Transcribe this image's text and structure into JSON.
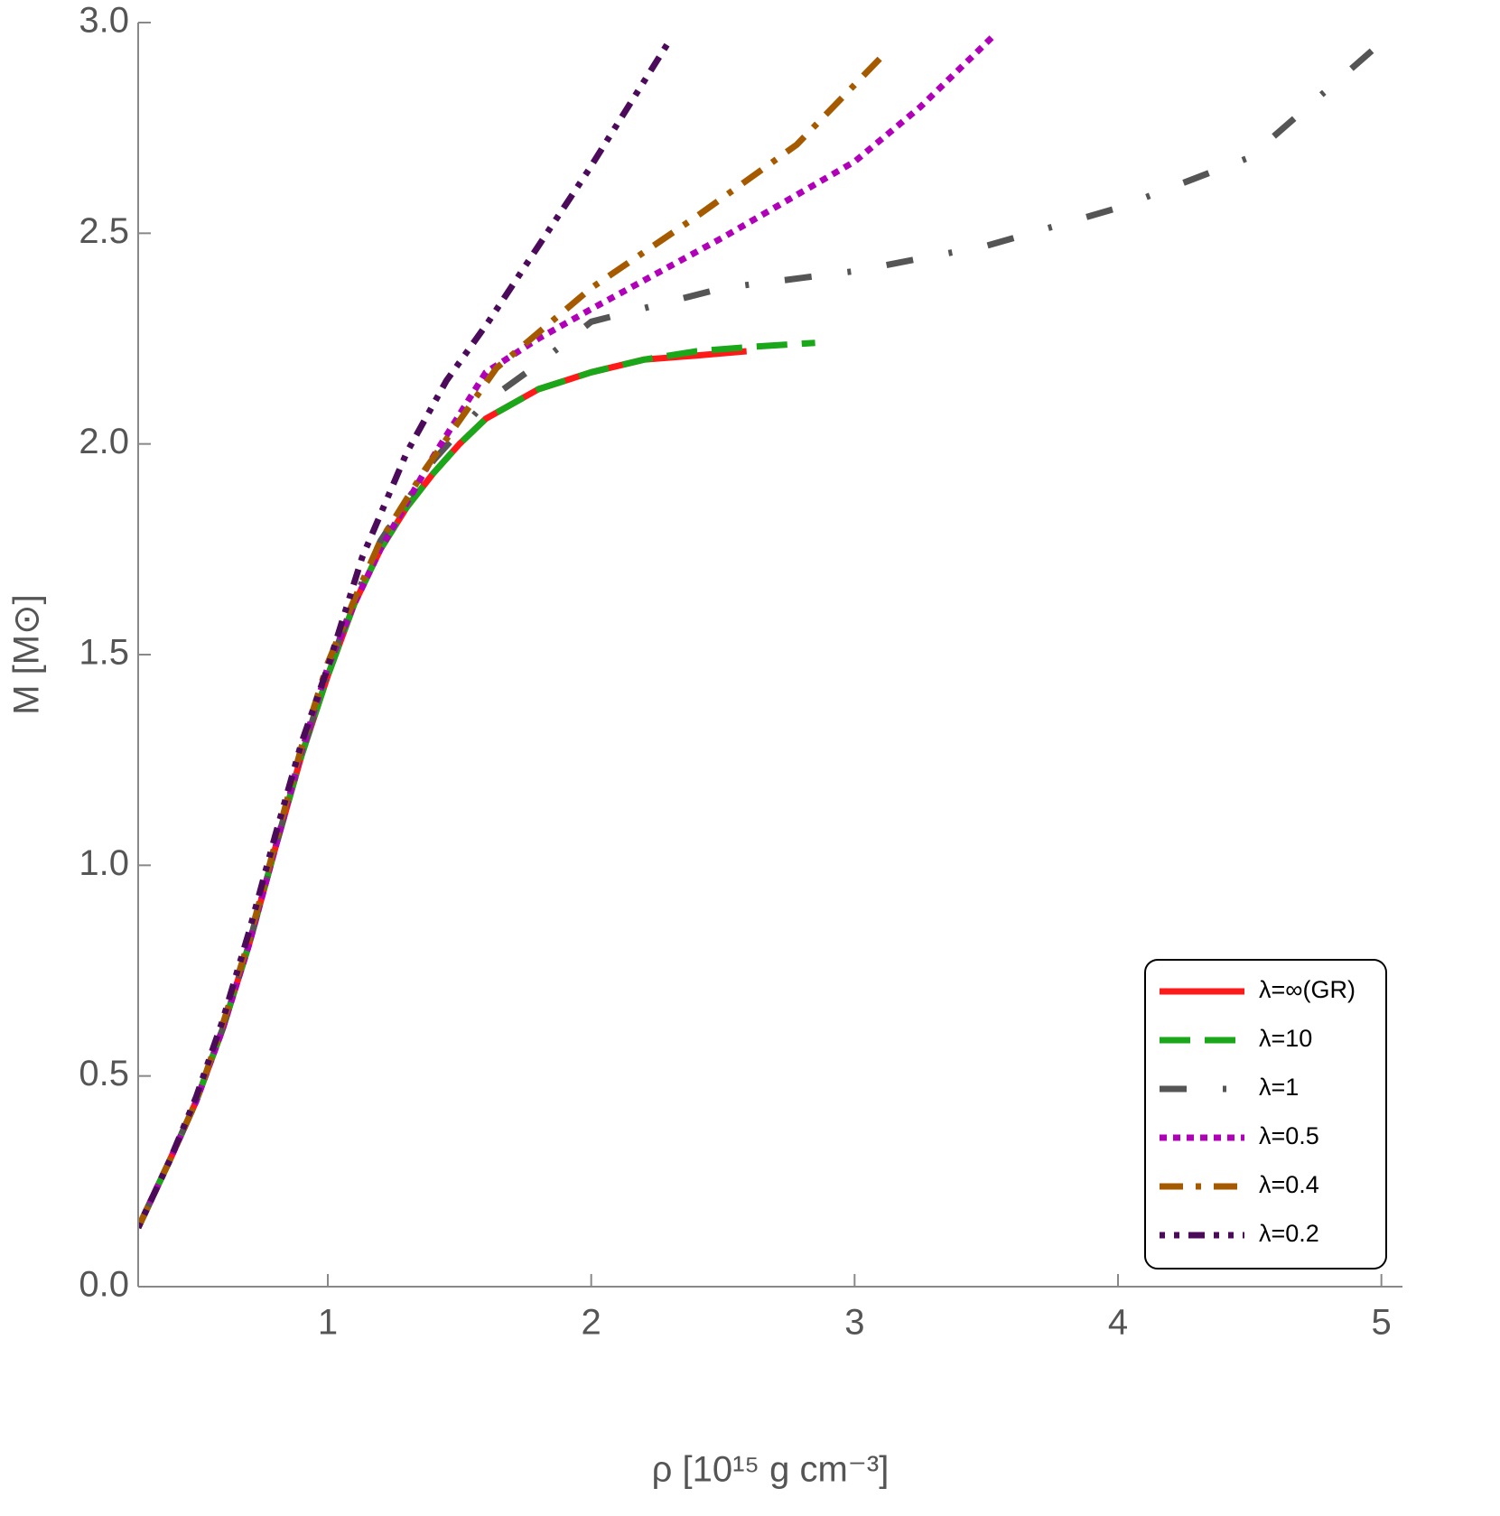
{
  "chart_data": {
    "type": "line",
    "xlabel": "ρ [10¹⁵ g cm⁻³]",
    "ylabel": "M [M⊙]",
    "xlim": [
      0.28,
      5.08
    ],
    "ylim": [
      0,
      3
    ],
    "xticks": [
      1,
      2,
      3,
      4,
      5
    ],
    "yticks": [
      {
        "value": 0,
        "label": "0.0"
      },
      0.5,
      {
        "value": 1,
        "label": "1.0"
      },
      1.5,
      {
        "value": 2,
        "label": "2.0"
      },
      2.5,
      {
        "value": 3,
        "label": "3.0"
      }
    ],
    "legend": "lower right",
    "series": [
      {
        "name": "λ=∞(GR)",
        "color": "#ff1a1a",
        "dash": "solid",
        "x": [
          0.28,
          0.4,
          0.5,
          0.6,
          0.7,
          0.8,
          0.9,
          1.0,
          1.1,
          1.2,
          1.3,
          1.4,
          1.5,
          1.6,
          1.8,
          2.0,
          2.2,
          2.4,
          2.59
        ],
        "values": [
          0.14,
          0.3,
          0.44,
          0.61,
          0.81,
          1.04,
          1.26,
          1.45,
          1.62,
          1.75,
          1.85,
          1.93,
          2.0,
          2.06,
          2.13,
          2.17,
          2.2,
          2.21,
          2.22
        ]
      },
      {
        "name": "λ=10",
        "color": "#1aa81a",
        "dash": "long-dash",
        "x": [
          0.28,
          0.4,
          0.5,
          0.6,
          0.7,
          0.8,
          0.9,
          1.0,
          1.1,
          1.2,
          1.3,
          1.4,
          1.5,
          1.6,
          1.8,
          2.0,
          2.2,
          2.4,
          2.6,
          2.85
        ],
        "values": [
          0.14,
          0.3,
          0.44,
          0.61,
          0.81,
          1.04,
          1.26,
          1.45,
          1.62,
          1.75,
          1.85,
          1.93,
          2.0,
          2.06,
          2.13,
          2.17,
          2.2,
          2.22,
          2.23,
          2.24
        ]
      },
      {
        "name": "λ=1",
        "color": "#555555",
        "dash": "dash-dot",
        "x": [
          0.28,
          0.4,
          0.5,
          0.6,
          0.7,
          0.8,
          0.9,
          1.0,
          1.1,
          1.2,
          1.4,
          1.6,
          1.8,
          2.0,
          2.5,
          3.0,
          3.5,
          4.0,
          4.5,
          5.05
        ],
        "values": [
          0.14,
          0.3,
          0.44,
          0.61,
          0.81,
          1.04,
          1.26,
          1.46,
          1.63,
          1.77,
          1.96,
          2.1,
          2.19,
          2.29,
          2.37,
          2.41,
          2.47,
          2.56,
          2.68,
          2.98
        ]
      },
      {
        "name": "λ=0.5",
        "color": "#b000b8",
        "dash": "dot",
        "x": [
          0.28,
          0.4,
          0.5,
          0.6,
          0.7,
          0.8,
          0.9,
          1.0,
          1.1,
          1.2,
          1.4,
          1.6,
          1.8,
          2.0,
          2.5,
          3.0,
          3.25,
          3.53
        ],
        "values": [
          0.14,
          0.3,
          0.44,
          0.61,
          0.81,
          1.04,
          1.27,
          1.47,
          1.62,
          1.75,
          1.97,
          2.17,
          2.25,
          2.32,
          2.49,
          2.67,
          2.8,
          2.97
        ]
      },
      {
        "name": "λ=0.4",
        "color": "#a65a00",
        "dash": "dash-dot-thick",
        "x": [
          0.28,
          0.4,
          0.5,
          0.6,
          0.7,
          0.8,
          0.9,
          1.0,
          1.1,
          1.2,
          1.37,
          1.64,
          2.0,
          2.4,
          2.78,
          3.12
        ],
        "values": [
          0.14,
          0.3,
          0.44,
          0.62,
          0.82,
          1.05,
          1.28,
          1.48,
          1.63,
          1.77,
          1.94,
          2.18,
          2.37,
          2.54,
          2.71,
          2.93
        ]
      },
      {
        "name": "λ=0.2",
        "color": "#4b0a5a",
        "dash": "dot-dot-dash",
        "x": [
          0.28,
          0.4,
          0.5,
          0.6,
          0.7,
          0.8,
          0.9,
          1.0,
          1.13,
          1.3,
          1.45,
          1.61,
          1.8,
          1.99,
          2.15,
          2.3
        ],
        "values": [
          0.14,
          0.3,
          0.45,
          0.63,
          0.84,
          1.07,
          1.29,
          1.47,
          1.73,
          1.98,
          2.15,
          2.29,
          2.47,
          2.65,
          2.81,
          2.96
        ]
      }
    ]
  }
}
